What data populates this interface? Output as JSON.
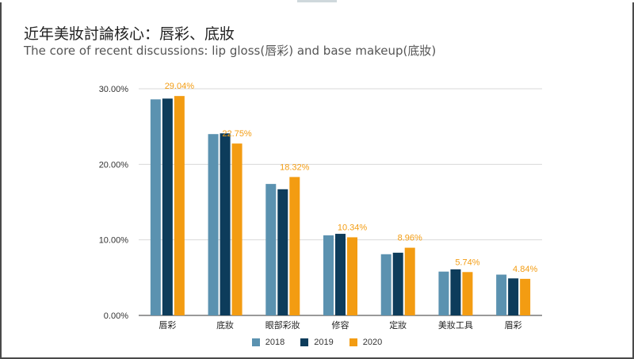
{
  "title": "近年美妝討論核心：唇彩、底妝",
  "subtitle": "The core of recent discussions: lip gloss(唇彩) and base makeup(底妝)",
  "chart_data": {
    "type": "bar",
    "categories": [
      "唇彩",
      "底妝",
      "眼部彩妝",
      "修容",
      "定妝",
      "美妝工具",
      "眉彩"
    ],
    "series": [
      {
        "name": "2018",
        "color": "#5b92b0",
        "values": [
          28.6,
          24.0,
          17.4,
          10.6,
          8.1,
          5.8,
          5.4
        ]
      },
      {
        "name": "2019",
        "color": "#0d3c5b",
        "values": [
          28.7,
          24.1,
          16.7,
          10.8,
          8.3,
          6.1,
          4.9
        ]
      },
      {
        "name": "2020",
        "color": "#f39c12",
        "values": [
          29.04,
          22.75,
          18.32,
          10.34,
          8.96,
          5.74,
          4.84
        ]
      }
    ],
    "data_labels": [
      "29.04%",
      "22.75%",
      "18.32%",
      "10.34%",
      "8.96%",
      "5.74%",
      "4.84%"
    ],
    "y_ticks": [
      "0.00%",
      "10.00%",
      "20.00%",
      "30.00%"
    ],
    "ylim": [
      0,
      30
    ],
    "grid": true,
    "legend": "bottom"
  }
}
